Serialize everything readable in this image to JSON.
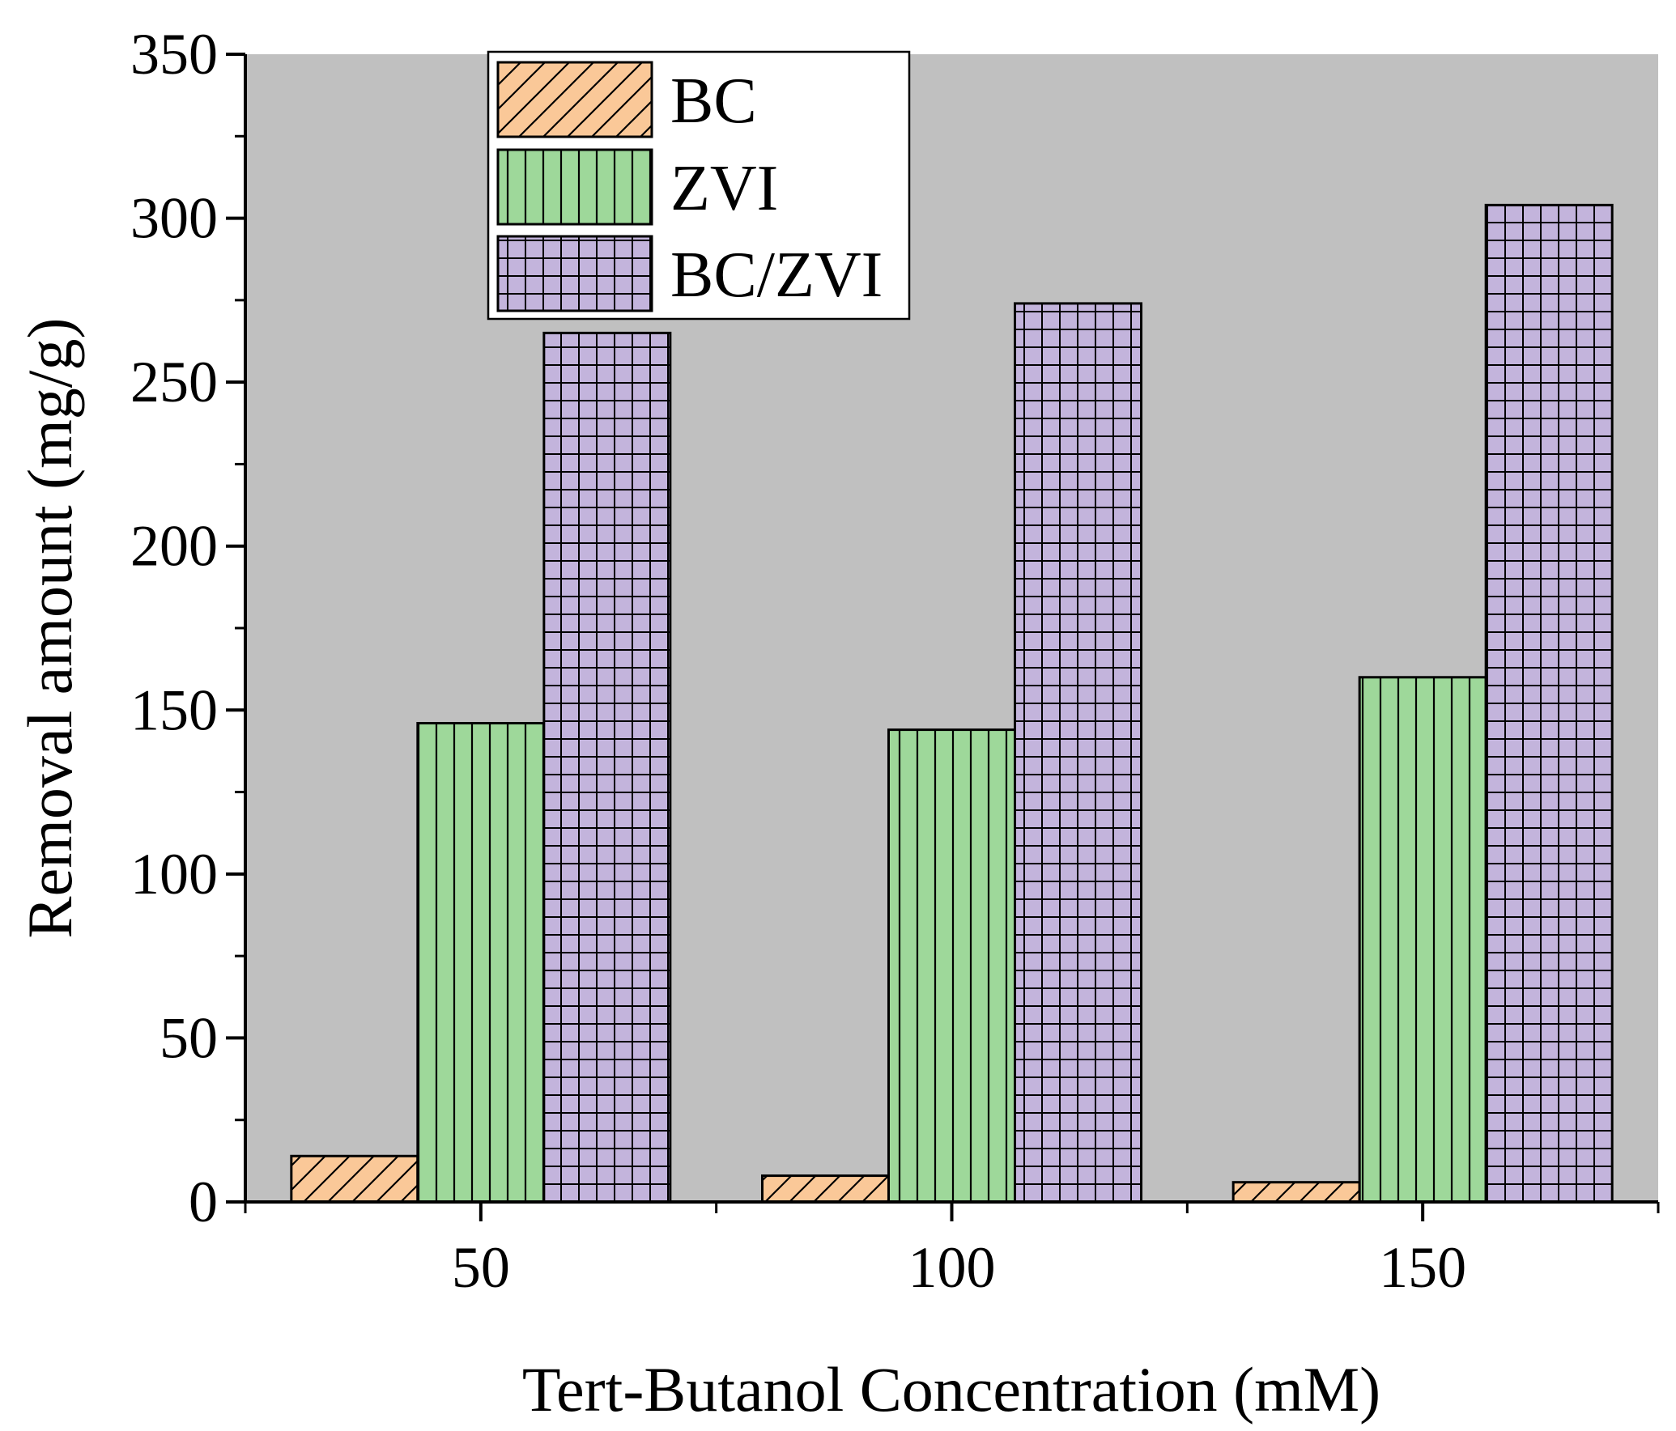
{
  "chart_data": {
    "type": "bar",
    "title": "",
    "xlabel": "Tert-Butanol Concentration (mM)",
    "ylabel": "Removal amount (mg/g)",
    "ylim": [
      0,
      350
    ],
    "yticks": [
      0,
      50,
      100,
      150,
      200,
      250,
      300,
      350
    ],
    "categories": [
      "50",
      "100",
      "150"
    ],
    "series": [
      {
        "name": "BC",
        "values": [
          14,
          8,
          6
        ],
        "color": "#FAC898",
        "pattern": "diagonal-hatch"
      },
      {
        "name": "ZVI",
        "values": [
          146,
          144,
          160
        ],
        "color": "#9ED89A",
        "pattern": "vertical-lines"
      },
      {
        "name": "BC/ZVI",
        "values": [
          265,
          274,
          304
        ],
        "color": "#C3B4DC",
        "pattern": "grid"
      }
    ],
    "plot_background": "#C0C0C0",
    "legend_position": "top-left",
    "grid": false
  }
}
